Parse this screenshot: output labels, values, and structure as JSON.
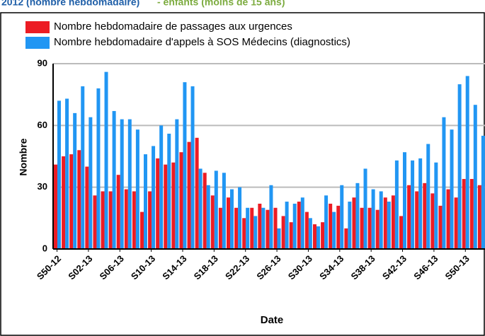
{
  "chart_data": {
    "type": "bar",
    "title": "2012 (nombre hebdomadaire)",
    "subtitle": "- enfants (moins de 15 ans)",
    "x_label": "Date",
    "y_label": "Nombre",
    "categories": [
      "S50-12",
      null,
      null,
      null,
      "S02-13",
      null,
      null,
      null,
      "S06-13",
      null,
      null,
      null,
      "S10-13",
      null,
      null,
      null,
      "S14-13",
      null,
      null,
      null,
      "S18-13",
      null,
      null,
      null,
      "S22-13",
      null,
      null,
      null,
      "S26-13",
      null,
      null,
      null,
      "S30-13",
      null,
      null,
      null,
      "S34-13",
      null,
      null,
      null,
      "S38-13",
      null,
      null,
      null,
      "S42-13",
      null,
      null,
      null,
      "S46-13",
      null,
      null,
      null,
      "S50-13",
      null,
      null
    ],
    "series": [
      {
        "name": "Nombre hebdomadaire de passages aux urgences",
        "color": "#ec1c24",
        "values": [
          41,
          45,
          46,
          48,
          40,
          26,
          28,
          28,
          36,
          29,
          28,
          18,
          28,
          44,
          41,
          42,
          47,
          52,
          54,
          37,
          26,
          20,
          25,
          20,
          15,
          20,
          22,
          19,
          20,
          16,
          13,
          23,
          18,
          12,
          13,
          22,
          21,
          10,
          25,
          20,
          20,
          19,
          25,
          26,
          16,
          31,
          28,
          32,
          27,
          21,
          29,
          25,
          34,
          34,
          31
        ]
      },
      {
        "name": "Nombre hebdomadaire d'appels à SOS Médecins (diagnostics)",
        "color": "#2196f3",
        "values": [
          72,
          73,
          66,
          79,
          64,
          78,
          86,
          67,
          63,
          63,
          58,
          46,
          50,
          60,
          56,
          63,
          81,
          79,
          39,
          31,
          38,
          37,
          29,
          30,
          20,
          16,
          20,
          31,
          10,
          23,
          22,
          25,
          15,
          11,
          26,
          18,
          31,
          23,
          32,
          39,
          29,
          28,
          23,
          43,
          47,
          43,
          44,
          51,
          42,
          64,
          58,
          80,
          84,
          70,
          55
        ]
      }
    ],
    "ylim": [
      0,
      90
    ],
    "yticks": [
      0,
      30,
      60,
      90
    ],
    "grid": true
  }
}
